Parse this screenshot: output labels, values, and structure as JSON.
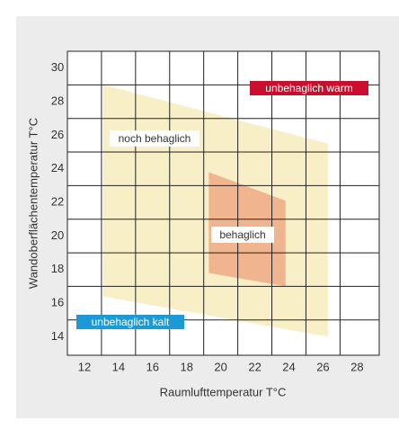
{
  "chart_data": {
    "type": "polygon",
    "x_label": "Raumlufttemperatur T°C",
    "y_label": "Wandoberflächentemperatur T°C",
    "xlim": [
      11,
      29.3
    ],
    "ylim": [
      12.9,
      31
    ],
    "xticks": [
      12,
      14,
      16,
      18,
      20,
      22,
      24,
      26,
      28
    ],
    "yticks": [
      14,
      16,
      18,
      20,
      22,
      24,
      26,
      28,
      30
    ],
    "xgrid": [
      13,
      15,
      17,
      19,
      21,
      23,
      25,
      27
    ],
    "ygrid": [
      15,
      17,
      19,
      21,
      23,
      25,
      27,
      29
    ],
    "series": [
      {
        "name": "noch behaglich",
        "color": "#f7ecbd",
        "x": [
          13.1,
          26.3,
          26.3,
          13.1
        ],
        "y": [
          29.0,
          25.5,
          14.0,
          16.4
        ]
      },
      {
        "name": "behaglich",
        "color": "#eea985",
        "x": [
          19.3,
          23.8,
          23.8,
          19.3
        ],
        "y": [
          23.8,
          22.1,
          17.0,
          17.8
        ]
      }
    ],
    "annotations": [
      {
        "text": "unbehaglich warm",
        "color": "#c8102e"
      },
      {
        "text": "unbehaglich kalt",
        "color": "#1b9ad6"
      }
    ]
  }
}
